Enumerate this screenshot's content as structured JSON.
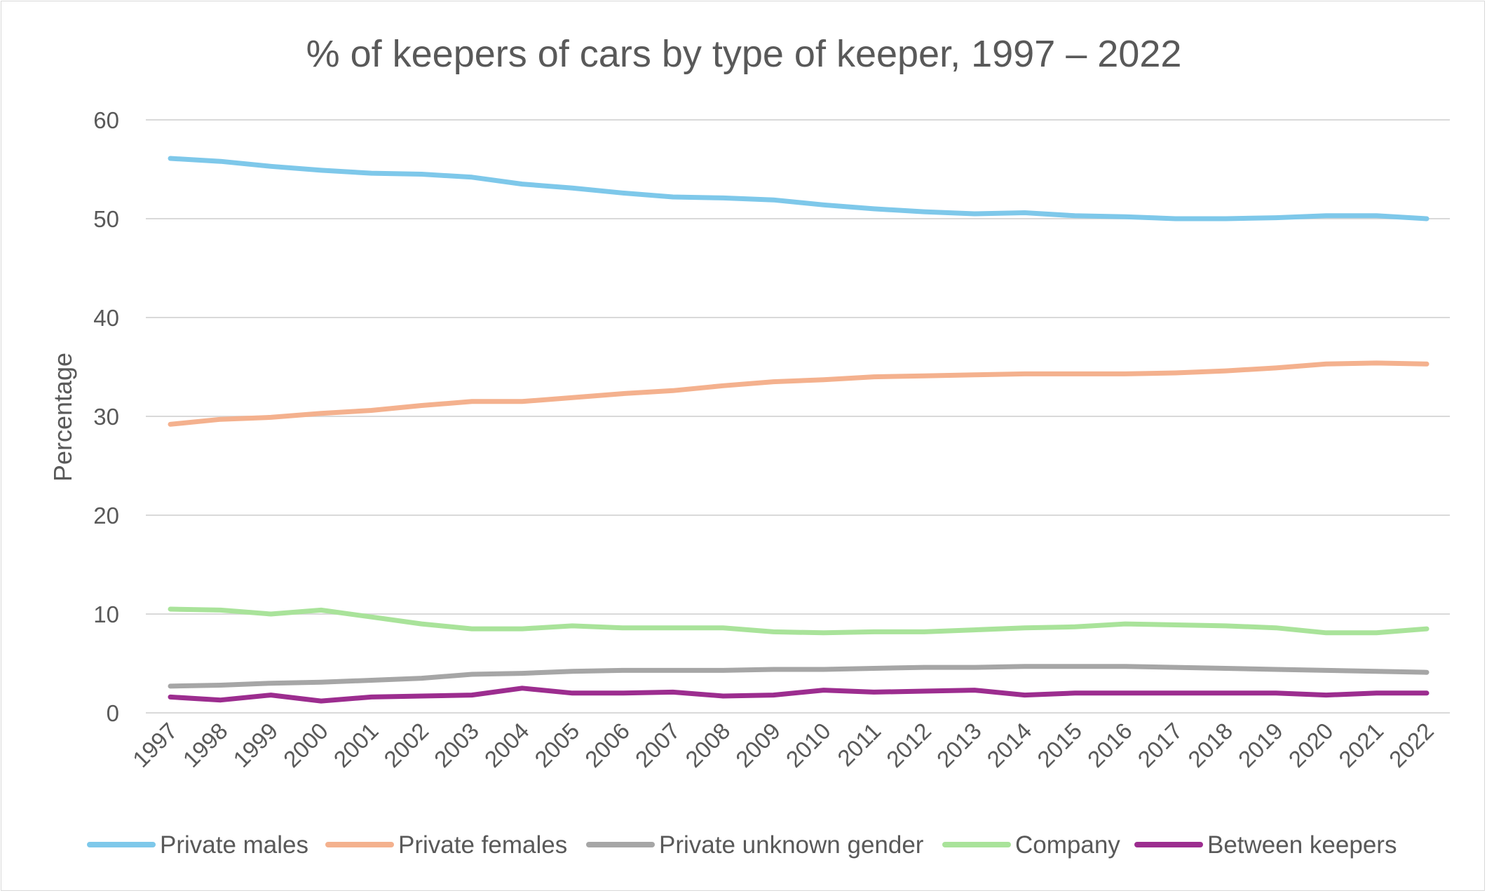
{
  "chart_data": {
    "type": "line",
    "title": "% of keepers of cars by type of keeper,  1997 – 2022",
    "xlabel": "",
    "ylabel": "Percentage",
    "ylim": [
      0,
      60
    ],
    "yticks": [
      0,
      10,
      20,
      30,
      40,
      50,
      60
    ],
    "grid": true,
    "legend_position": "bottom",
    "categories": [
      "1997",
      "1998",
      "1999",
      "2000",
      "2001",
      "2002",
      "2003",
      "2004",
      "2005",
      "2006",
      "2007",
      "2008",
      "2009",
      "2010",
      "2011",
      "2012",
      "2013",
      "2014",
      "2015",
      "2016",
      "2017",
      "2018",
      "2019",
      "2020",
      "2021",
      "2022"
    ],
    "series": [
      {
        "name": "Private males",
        "color": "#7ec8ea",
        "values": [
          56.1,
          55.8,
          55.3,
          54.9,
          54.6,
          54.5,
          54.2,
          53.5,
          53.1,
          52.6,
          52.2,
          52.1,
          51.9,
          51.4,
          51.0,
          50.7,
          50.5,
          50.6,
          50.3,
          50.2,
          50.0,
          50.0,
          50.1,
          50.3,
          50.3,
          50.0
        ]
      },
      {
        "name": "Private females",
        "color": "#f4b18e",
        "values": [
          29.2,
          29.7,
          29.9,
          30.3,
          30.6,
          31.1,
          31.5,
          31.5,
          31.9,
          32.3,
          32.6,
          33.1,
          33.5,
          33.7,
          34.0,
          34.1,
          34.2,
          34.3,
          34.3,
          34.3,
          34.4,
          34.6,
          34.9,
          35.3,
          35.4,
          35.3
        ]
      },
      {
        "name": "Private unknown gender",
        "color": "#a6a6a6",
        "values": [
          2.7,
          2.8,
          3.0,
          3.1,
          3.3,
          3.5,
          3.9,
          4.0,
          4.2,
          4.3,
          4.3,
          4.3,
          4.4,
          4.4,
          4.5,
          4.6,
          4.6,
          4.7,
          4.7,
          4.7,
          4.6,
          4.5,
          4.4,
          4.3,
          4.2,
          4.1
        ]
      },
      {
        "name": "Company",
        "color": "#a9e39a",
        "values": [
          10.5,
          10.4,
          10.0,
          10.4,
          9.7,
          9.0,
          8.5,
          8.5,
          8.8,
          8.6,
          8.6,
          8.6,
          8.2,
          8.1,
          8.2,
          8.2,
          8.4,
          8.6,
          8.7,
          9.0,
          8.9,
          8.8,
          8.6,
          8.1,
          8.1,
          8.5
        ]
      },
      {
        "name": "Between keepers",
        "color": "#9c2d8f",
        "values": [
          1.6,
          1.3,
          1.8,
          1.2,
          1.6,
          1.7,
          1.8,
          2.5,
          2.0,
          2.0,
          2.1,
          1.7,
          1.8,
          2.3,
          2.1,
          2.2,
          2.3,
          1.8,
          2.0,
          2.0,
          2.0,
          2.0,
          2.0,
          1.8,
          2.0,
          2.0
        ]
      }
    ]
  }
}
